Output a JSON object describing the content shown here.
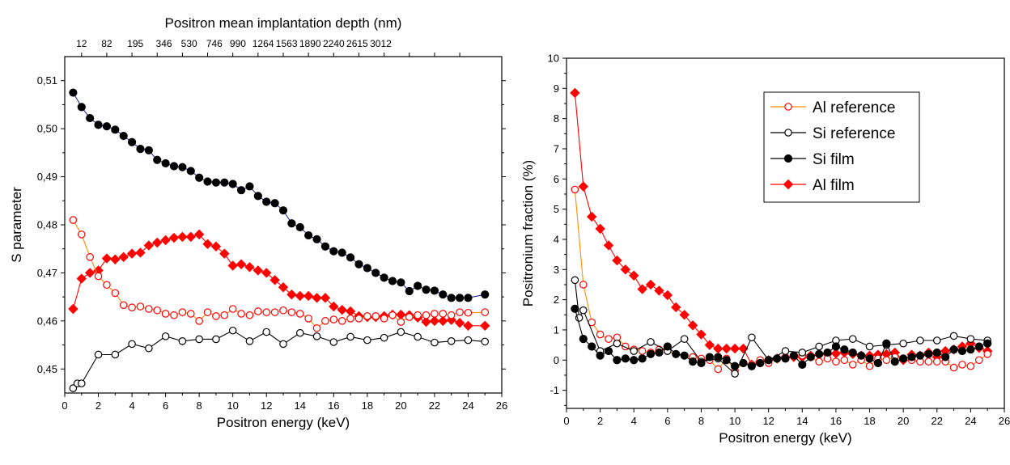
{
  "chart_data": [
    {
      "type": "line",
      "title": "",
      "xlabel": "Positron energy (keV)",
      "ylabel": "S parameter",
      "xlim": [
        0,
        26
      ],
      "ylim": [
        0.445,
        0.515
      ],
      "x_ticks": [
        0,
        2,
        4,
        6,
        8,
        10,
        12,
        14,
        16,
        18,
        20,
        22,
        24,
        26
      ],
      "y_ticks": [
        0.45,
        0.46,
        0.47,
        0.48,
        0.49,
        0.5,
        0.51
      ],
      "y_tick_labels": [
        "0,45",
        "0,46",
        "0,47",
        "0,48",
        "0,49",
        "0,50",
        "0,51"
      ],
      "top_axis": {
        "label": "Positron mean implantation depth (nm)",
        "energies": [
          1,
          2.5,
          4,
          5.5,
          7,
          8.5,
          10,
          11.5,
          13,
          14.5,
          16,
          17.5,
          19,
          20.5,
          22,
          23.5
        ],
        "labels": [
          "12",
          "82",
          "195",
          "346",
          "530",
          "746",
          "990",
          "1264",
          "1563",
          "1890",
          "2240",
          "2615",
          "3012"
        ],
        "label_energies": [
          1,
          2.5,
          4.2,
          5.9,
          7.4,
          8.9,
          10.3,
          11.8,
          13.2,
          14.6,
          16.0,
          17.4,
          18.8
        ]
      },
      "series": [
        {
          "key": "si_film",
          "color": "#000000",
          "line": "#2a2aa0",
          "marker": "filled-circle",
          "x": [
            0.5,
            1,
            1.5,
            2,
            2.5,
            3,
            3.5,
            4,
            4.5,
            5,
            5.5,
            6,
            6.5,
            7,
            7.5,
            8,
            8.5,
            9,
            9.5,
            10,
            10.5,
            11,
            11.5,
            12,
            12.5,
            13,
            13.5,
            14,
            14.5,
            15,
            15.5,
            16,
            16.5,
            17,
            17.5,
            18,
            18.5,
            19,
            19.5,
            20,
            20.5,
            21,
            21.5,
            22,
            22.5,
            23,
            23.5,
            24,
            25
          ],
          "y": [
            0.5075,
            0.5045,
            0.5022,
            0.5008,
            0.5005,
            0.4998,
            0.4985,
            0.4972,
            0.4958,
            0.4955,
            0.4935,
            0.4928,
            0.4922,
            0.492,
            0.4912,
            0.4898,
            0.489,
            0.4888,
            0.4888,
            0.4885,
            0.4872,
            0.488,
            0.486,
            0.4848,
            0.4845,
            0.483,
            0.4803,
            0.4795,
            0.4778,
            0.477,
            0.4755,
            0.4745,
            0.4742,
            0.4732,
            0.4718,
            0.471,
            0.47,
            0.469,
            0.4683,
            0.468,
            0.4662,
            0.4673,
            0.4665,
            0.4663,
            0.4655,
            0.4648,
            0.4648,
            0.4648,
            0.4655
          ]
        },
        {
          "key": "al_film",
          "color": "#ff0000",
          "line": "#ff0000",
          "marker": "filled-diamond",
          "x": [
            0.5,
            1,
            1.5,
            2,
            2.5,
            3,
            3.5,
            4,
            4.5,
            5,
            5.5,
            6,
            6.5,
            7,
            7.5,
            8,
            8.5,
            9,
            9.5,
            10,
            10.5,
            11,
            11.5,
            12,
            12.5,
            13,
            13.5,
            14,
            14.5,
            15,
            15.5,
            16,
            16.5,
            17,
            17.5,
            18,
            18.5,
            19,
            19.5,
            20,
            20.5,
            21,
            21.5,
            22,
            22.5,
            23,
            23.5,
            24,
            25
          ],
          "y": [
            0.4625,
            0.4688,
            0.47,
            0.4705,
            0.473,
            0.4728,
            0.4733,
            0.474,
            0.4742,
            0.4757,
            0.4763,
            0.4768,
            0.4773,
            0.4775,
            0.4775,
            0.478,
            0.476,
            0.4755,
            0.474,
            0.4715,
            0.4718,
            0.4712,
            0.4705,
            0.47,
            0.4685,
            0.467,
            0.4655,
            0.4652,
            0.4652,
            0.4648,
            0.4648,
            0.463,
            0.4623,
            0.462,
            0.461,
            0.4608,
            0.4608,
            0.461,
            0.4613,
            0.4613,
            0.4612,
            0.4607,
            0.4598,
            0.46,
            0.46,
            0.4602,
            0.4596,
            0.459,
            0.459
          ]
        },
        {
          "key": "al_ref",
          "color": "#ff0000",
          "line": "#ff8c00",
          "marker": "open-circle",
          "x": [
            0.5,
            1,
            1.5,
            2,
            2.5,
            3,
            3.5,
            4,
            4.5,
            5,
            5.5,
            6,
            6.5,
            7,
            7.5,
            8,
            8.5,
            9,
            9.5,
            10,
            10.5,
            11,
            11.5,
            12,
            12.5,
            13,
            13.5,
            14,
            14.5,
            15,
            15.5,
            16,
            16.5,
            17,
            17.5,
            18,
            18.5,
            19,
            19.5,
            20,
            20.5,
            21,
            21.5,
            22,
            22.5,
            23,
            23.5,
            24,
            25
          ],
          "y": [
            0.481,
            0.478,
            0.4733,
            0.4693,
            0.4675,
            0.4658,
            0.4633,
            0.4628,
            0.463,
            0.4625,
            0.4622,
            0.4615,
            0.4612,
            0.4618,
            0.4615,
            0.46,
            0.4618,
            0.461,
            0.4612,
            0.4625,
            0.4615,
            0.4612,
            0.462,
            0.4618,
            0.4618,
            0.4622,
            0.4618,
            0.4615,
            0.4605,
            0.4585,
            0.46,
            0.4603,
            0.46,
            0.4605,
            0.4605,
            0.461,
            0.461,
            0.4605,
            0.4612,
            0.4598,
            0.4608,
            0.4612,
            0.4612,
            0.4615,
            0.4615,
            0.4612,
            0.4618,
            0.4617,
            0.4618
          ]
        },
        {
          "key": "si_ref",
          "color": "#000000",
          "line": "#000000",
          "marker": "open-circle",
          "x": [
            0.5,
            0.75,
            1,
            2,
            3,
            4,
            5,
            6,
            7,
            8,
            9,
            10,
            11,
            12,
            13,
            14,
            15,
            16,
            17,
            18,
            19,
            20,
            21,
            22,
            23,
            24,
            25
          ],
          "y": [
            0.446,
            0.447,
            0.447,
            0.453,
            0.453,
            0.4552,
            0.4543,
            0.4568,
            0.4558,
            0.4562,
            0.4562,
            0.458,
            0.4558,
            0.4577,
            0.4552,
            0.4575,
            0.4568,
            0.4556,
            0.4567,
            0.456,
            0.4565,
            0.4577,
            0.4567,
            0.4555,
            0.4558,
            0.456,
            0.4557
          ]
        }
      ]
    },
    {
      "type": "line",
      "title": "",
      "xlabel": "Positron energy (keV)",
      "ylabel": "Positronium fraction (%)",
      "xlim": [
        0,
        26
      ],
      "ylim": [
        -1.6,
        10
      ],
      "x_ticks": [
        0,
        2,
        4,
        6,
        8,
        10,
        12,
        14,
        16,
        18,
        20,
        22,
        24,
        26
      ],
      "y_ticks": [
        -1,
        0,
        1,
        2,
        3,
        4,
        5,
        6,
        7,
        8,
        9,
        10
      ],
      "legend": {
        "position": "top-right",
        "entries": [
          {
            "label": "Al reference",
            "series": "al_ref"
          },
          {
            "label": "Si reference",
            "series": "si_ref"
          },
          {
            "label": "Si film",
            "series": "si_film"
          },
          {
            "label": "Al film",
            "series": "al_film"
          }
        ]
      },
      "series": [
        {
          "key": "al_film",
          "name": "Al film",
          "color": "#ff0000",
          "line": "#ff0000",
          "marker": "filled-diamond",
          "x": [
            0.5,
            1,
            1.5,
            2,
            2.5,
            3,
            3.5,
            4,
            4.5,
            5,
            5.5,
            6,
            6.5,
            7,
            7.5,
            8,
            8.5,
            9,
            9.5,
            10,
            10.5,
            11,
            11.5,
            12,
            12.5,
            13,
            13.5,
            14,
            14.5,
            15,
            15.5,
            16,
            16.5,
            17,
            17.5,
            18,
            18.5,
            19,
            19.5,
            20,
            20.5,
            21,
            21.5,
            22,
            22.5,
            23,
            23.5,
            24,
            24.5,
            25
          ],
          "y": [
            8.85,
            5.75,
            4.75,
            4.35,
            3.8,
            3.3,
            3.0,
            2.8,
            2.35,
            2.5,
            2.3,
            2.15,
            1.75,
            1.5,
            1.15,
            0.85,
            0.5,
            0.38,
            0.38,
            0.38,
            0.38,
            -0.15,
            -0.05,
            0.0,
            0.05,
            0.1,
            0.1,
            0.1,
            0.15,
            0.18,
            0.2,
            0.22,
            0.25,
            0.2,
            0.15,
            0.15,
            0.18,
            0.2,
            0.25,
            0.0,
            0.18,
            0.15,
            0.25,
            0.1,
            0.3,
            0.35,
            0.45,
            0.55,
            0.4,
            0.3
          ]
        },
        {
          "key": "al_ref",
          "name": "Al reference",
          "color": "#ff0000",
          "line": "#ff8c00",
          "marker": "open-circle",
          "x": [
            0.5,
            1,
            1.5,
            2,
            2.5,
            3,
            3.5,
            4,
            4.5,
            5,
            5.5,
            6,
            6.5,
            7,
            7.5,
            8,
            8.5,
            9,
            9.5,
            10,
            10.5,
            11,
            11.5,
            12,
            12.5,
            13,
            13.5,
            14,
            14.5,
            15,
            15.5,
            16,
            16.5,
            17,
            17.5,
            18,
            18.5,
            19,
            19.5,
            20,
            20.5,
            21,
            21.5,
            22,
            22.5,
            23,
            23.5,
            24,
            24.5,
            25
          ],
          "y": [
            5.65,
            2.5,
            1.25,
            0.85,
            0.7,
            0.75,
            0.45,
            0.35,
            0.3,
            0.25,
            0.35,
            0.3,
            0.2,
            0.15,
            0.1,
            0.05,
            0.0,
            -0.3,
            0.05,
            -0.35,
            -0.1,
            -0.15,
            0.0,
            -0.1,
            0.05,
            0.1,
            0.15,
            0.15,
            0.1,
            -0.05,
            0.05,
            -0.05,
            0.0,
            -0.15,
            0.0,
            -0.2,
            0.05,
            0.0,
            0.1,
            0.05,
            0.0,
            -0.05,
            -0.05,
            -0.05,
            -0.05,
            -0.25,
            -0.15,
            -0.2,
            0.0,
            0.2
          ]
        },
        {
          "key": "si_ref",
          "name": "Si reference",
          "color": "#000000",
          "line": "#000000",
          "marker": "open-circle",
          "x": [
            0.5,
            0.75,
            1,
            2,
            3,
            4,
            5,
            6,
            7,
            8,
            9,
            10,
            11,
            12,
            13,
            14,
            15,
            16,
            17,
            18,
            19,
            20,
            21,
            22,
            23,
            24,
            25
          ],
          "y": [
            2.65,
            1.4,
            1.65,
            0.3,
            0.55,
            0.3,
            0.6,
            0.3,
            0.7,
            -0.05,
            0.05,
            -0.45,
            0.75,
            0.0,
            0.3,
            0.25,
            0.45,
            0.65,
            0.7,
            0.45,
            0.5,
            0.55,
            0.65,
            0.65,
            0.8,
            0.7,
            0.65
          ]
        },
        {
          "key": "si_film",
          "name": "Si film",
          "color": "#000000",
          "line": "#000000",
          "marker": "filled-circle",
          "x": [
            0.5,
            1,
            1.5,
            2,
            2.5,
            3,
            3.5,
            4,
            4.5,
            5,
            5.5,
            6,
            6.5,
            7,
            7.5,
            8,
            8.5,
            9,
            9.5,
            10,
            10.5,
            11,
            11.5,
            12,
            12.5,
            13,
            13.5,
            14,
            14.5,
            15,
            15.5,
            16,
            16.5,
            17,
            17.5,
            18,
            18.5,
            19,
            19.5,
            20,
            20.5,
            21,
            21.5,
            22,
            22.5,
            23,
            23.5,
            24,
            24.5,
            25
          ],
          "y": [
            1.7,
            0.7,
            0.45,
            0.15,
            0.3,
            0.0,
            0.05,
            0.0,
            0.05,
            0.2,
            0.25,
            0.45,
            0.2,
            0.15,
            -0.05,
            -0.1,
            0.1,
            0.1,
            0.0,
            -0.2,
            -0.1,
            -0.2,
            -0.1,
            0.0,
            0.05,
            0.05,
            0.15,
            -0.15,
            0.1,
            0.2,
            0.25,
            0.45,
            0.35,
            0.25,
            0.15,
            0.05,
            -0.1,
            0.55,
            -0.05,
            0.05,
            0.1,
            0.15,
            0.2,
            0.25,
            0.1,
            0.35,
            0.3,
            0.35,
            0.45,
            0.55
          ]
        }
      ]
    }
  ]
}
